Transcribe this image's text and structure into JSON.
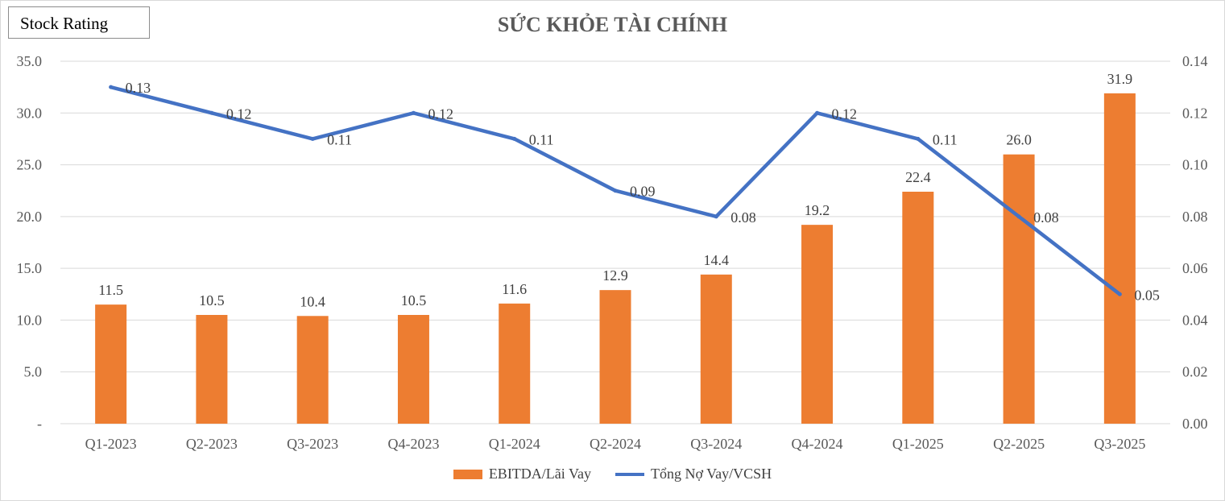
{
  "badge": {
    "label": "Stock Rating"
  },
  "chart_data": {
    "type": "bar",
    "title": "SỨC KHỎE TÀI CHÍNH",
    "categories": [
      "Q1-2023",
      "Q2-2023",
      "Q3-2023",
      "Q4-2023",
      "Q1-2024",
      "Q2-2024",
      "Q3-2024",
      "Q4-2024",
      "Q1-2025",
      "Q2-2025",
      "Q3-2025"
    ],
    "series": [
      {
        "name": "EBITDA/Lãi Vay",
        "type": "bar",
        "axis": "left",
        "color": "#ED7D31",
        "values": [
          11.5,
          10.5,
          10.4,
          10.5,
          11.6,
          12.9,
          14.4,
          19.2,
          22.4,
          26.0,
          31.9
        ],
        "labels": [
          "11.5",
          "10.5",
          "10.4",
          "10.5",
          "11.6",
          "12.9",
          "14.4",
          "19.2",
          "22.4",
          "26.0",
          "31.9"
        ]
      },
      {
        "name": "Tổng Nợ Vay/VCSH",
        "type": "line",
        "axis": "right",
        "color": "#4472C4",
        "values": [
          0.13,
          0.12,
          0.11,
          0.12,
          0.11,
          0.09,
          0.08,
          0.12,
          0.11,
          0.08,
          0.05
        ],
        "labels": [
          "0.13",
          "0.12",
          "0.11",
          "0.12",
          "0.11",
          "0.09",
          "0.08",
          "0.12",
          "0.11",
          "0.08",
          "0.05"
        ]
      }
    ],
    "y_left": {
      "ylim": [
        0,
        35
      ],
      "ticks": [
        "-",
        "5.0",
        "10.0",
        "15.0",
        "20.0",
        "25.0",
        "30.0",
        "35.0"
      ]
    },
    "y_right": {
      "ylim": [
        0,
        0.14
      ],
      "ticks": [
        "0.00",
        "0.02",
        "0.04",
        "0.06",
        "0.08",
        "0.10",
        "0.12",
        "0.14"
      ]
    },
    "grid": true,
    "legend_position": "bottom"
  }
}
